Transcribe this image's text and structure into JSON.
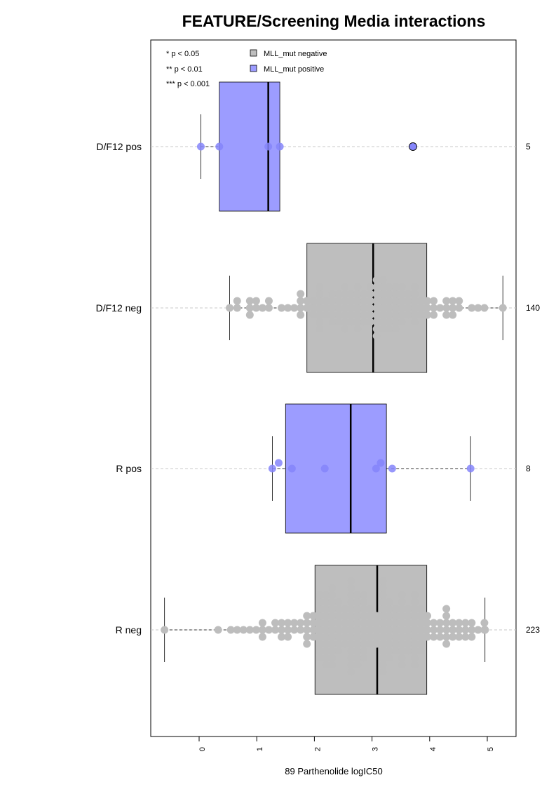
{
  "chart_data": {
    "type": "box",
    "title": "FEATURE/Screening Media interactions",
    "xlabel": "89 Parthenolide logIC50",
    "xlim": [
      -0.85,
      5.5
    ],
    "xticks": [
      "0",
      "1",
      "2",
      "3",
      "4",
      "5"
    ],
    "significance_legend": [
      "* p < 0.05",
      "** p < 0.01",
      "*** p < 0.001"
    ],
    "legend": [
      {
        "label": "MLL_mut negative",
        "color": "#BEBEBE"
      },
      {
        "label": "MLL_mut positive",
        "color": "#9C9CFF"
      }
    ],
    "legend_position": "top-left",
    "grid": false,
    "colors": {
      "negative_box": "#BEBEBE",
      "positive_box": "#9C9CFF",
      "negative_point": "#BDBDBD",
      "positive_point": "#8585FA"
    },
    "groups": [
      {
        "label": "D/F12 pos",
        "n": "5",
        "mll": "positive",
        "q1": 0.35,
        "median": 1.2,
        "q3": 1.4,
        "whisker_low": 0.03,
        "whisker_high": 1.4,
        "points": [
          0.03,
          0.35,
          1.2,
          1.4
        ],
        "outliers": [
          3.71
        ]
      },
      {
        "label": "D/F12 neg",
        "n": "140",
        "mll": "negative",
        "q1": 1.87,
        "median": 3.02,
        "q3": 3.95,
        "whisker_low": 0.53,
        "whisker_high": 5.27,
        "points": [],
        "outliers": []
      },
      {
        "label": "R pos",
        "n": "8",
        "mll": "positive",
        "q1": 1.5,
        "median": 2.63,
        "q3": 3.25,
        "whisker_low": 1.27,
        "whisker_high": 4.71,
        "points": [
          1.27,
          1.38,
          1.61,
          2.18,
          3.07,
          3.15,
          3.35,
          4.71
        ],
        "outliers": []
      },
      {
        "label": "R neg",
        "n": "223",
        "mll": "negative",
        "q1": 2.01,
        "median": 3.09,
        "q3": 3.95,
        "whisker_low": -0.6,
        "whisker_high": 4.96,
        "points": [],
        "outliers": []
      }
    ]
  }
}
